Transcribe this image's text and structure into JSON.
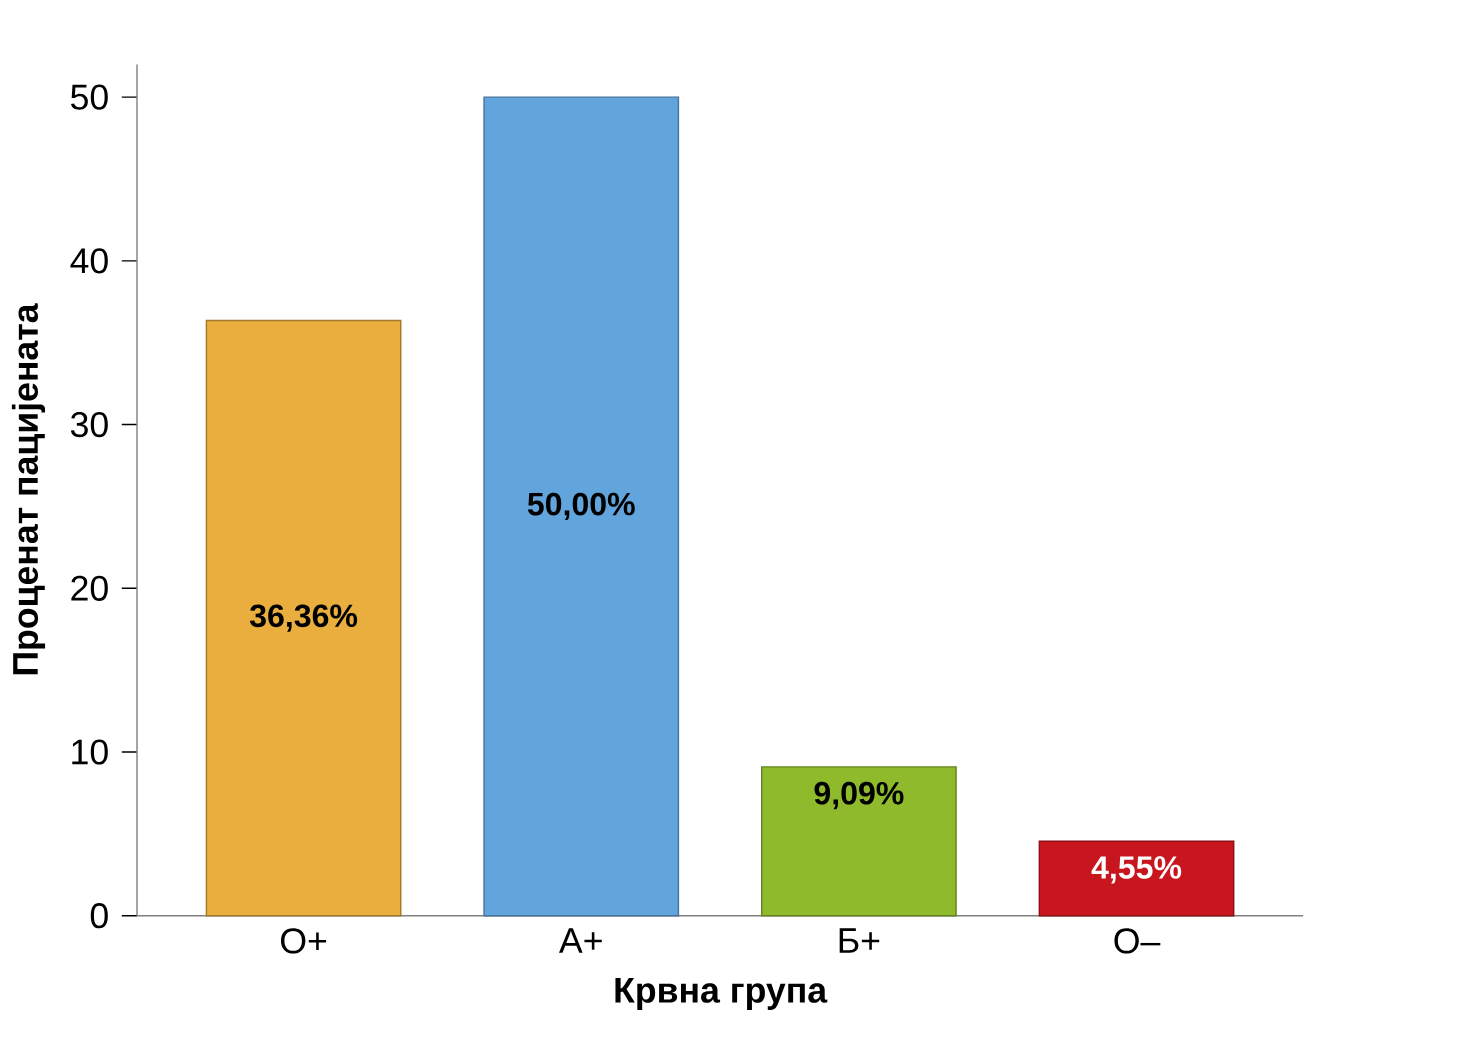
{
  "chart_data": {
    "type": "bar",
    "xlabel": "Крвна група",
    "ylabel": "Проценат пацијената",
    "categories": [
      "О+",
      "А+",
      "Б+",
      "О–"
    ],
    "values": [
      36.36,
      50,
      9.09,
      4.55
    ],
    "colors": [
      "#e9ae3e",
      "#62a5dc",
      "#8fba2c",
      "#c8161e"
    ],
    "value_labels": [
      "36,36%",
      "50,00%",
      "9,09%",
      "4,55%"
    ],
    "ylim": [
      0,
      52
    ],
    "yticks": [
      0,
      10,
      20,
      30,
      40,
      50
    ]
  }
}
